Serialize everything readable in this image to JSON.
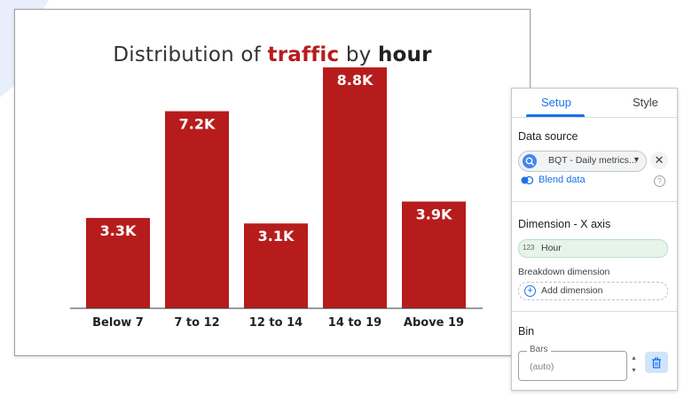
{
  "chart_data": {
    "type": "bar",
    "title_parts": [
      "Distribution of ",
      "traffic",
      " by ",
      "hour"
    ],
    "categories": [
      "Below 7",
      "7 to 12",
      "12 to 14",
      "14 to 19",
      "Above 19"
    ],
    "values": [
      3300,
      7200,
      3100,
      8800,
      3900
    ],
    "value_labels": [
      "3.3K",
      "7.2K",
      "3.1K",
      "8.8K",
      "3.9K"
    ],
    "ylim": [
      0,
      10000
    ],
    "bar_color": "#b71c1c",
    "grid": false,
    "legend": "none"
  },
  "panel": {
    "tabs": [
      "Setup",
      "Style"
    ],
    "active_tab": "Setup",
    "data_source_label": "Data source",
    "data_source_value": "BQT - Daily metrics...",
    "blend_label": "Blend data",
    "dimension_label": "Dimension - X axis",
    "dimension_type": "123",
    "dimension_value": "Hour",
    "breakdown_label": "Breakdown dimension",
    "add_dimension_label": "Add dimension",
    "bin_label": "Bin",
    "bars_label": "Bars",
    "bars_value": "(auto)",
    "accent_color": "#1a73e8"
  }
}
